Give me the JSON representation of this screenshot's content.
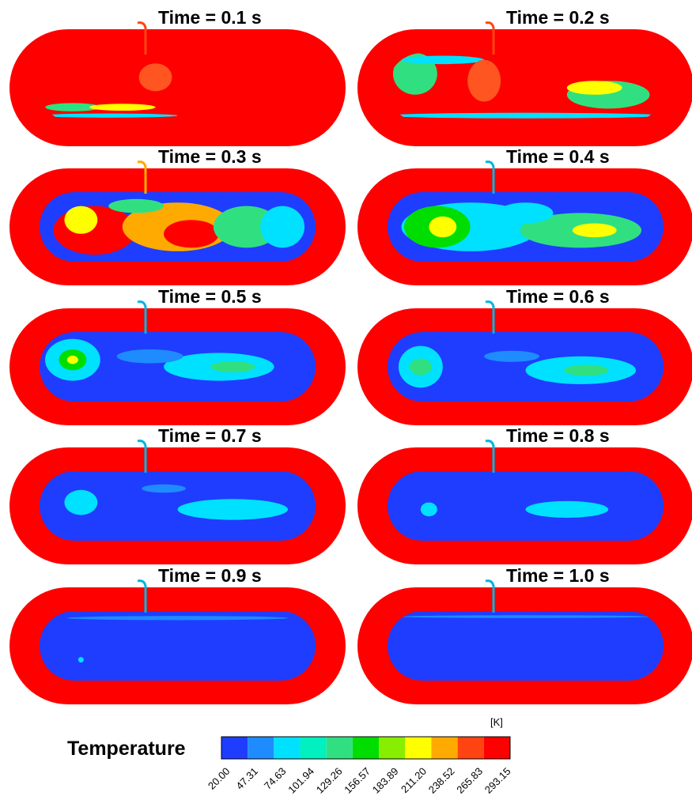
{
  "panels": [
    {
      "title": "Time = 0.1 s"
    },
    {
      "title": "Time = 0.2 s"
    },
    {
      "title": "Time = 0.3 s"
    },
    {
      "title": "Time = 0.4 s"
    },
    {
      "title": "Time = 0.5 s"
    },
    {
      "title": "Time = 0.6 s"
    },
    {
      "title": "Time = 0.7 s"
    },
    {
      "title": "Time = 0.8 s"
    },
    {
      "title": "Time = 0.9 s"
    },
    {
      "title": "Time = 1.0 s"
    }
  ],
  "colorbar": {
    "label": "Temperature",
    "unit": "[K]",
    "ticks": [
      "20.00",
      "47.31",
      "74.63",
      "101.94",
      "129.26",
      "156.57",
      "183.89",
      "211.20",
      "238.52",
      "265.83",
      "293.15"
    ],
    "colors": [
      "#1f3dff",
      "#1e8cff",
      "#00e1ff",
      "#00f0c0",
      "#30e080",
      "#00dd00",
      "#88ee00",
      "#ffff00",
      "#ffaa00",
      "#ff4411",
      "#ff0000"
    ]
  }
}
